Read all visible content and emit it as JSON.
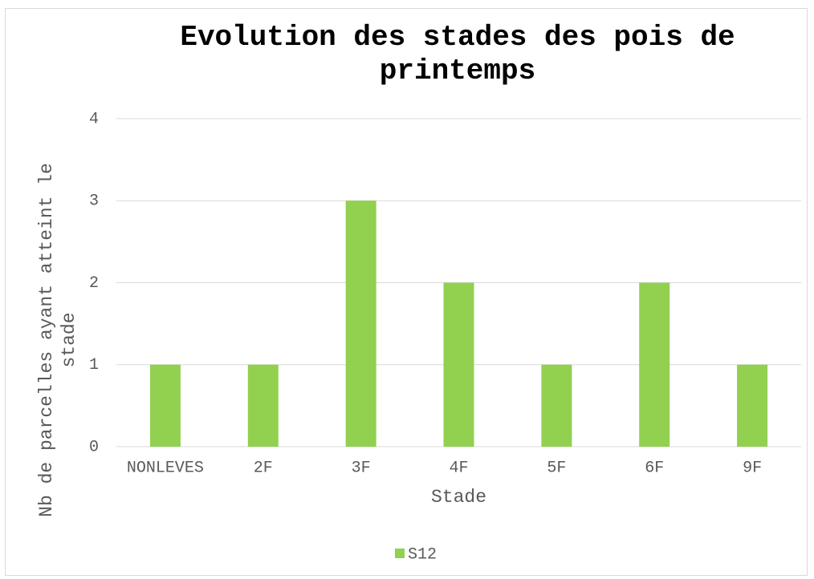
{
  "chart_data": {
    "type": "bar",
    "title": "Evolution des stades des pois de printemps",
    "x_label": "Stade",
    "y_label": "Nb de parcelles ayant atteint le stade",
    "categories": [
      "NONLEVES",
      "2F",
      "3F",
      "4F",
      "5F",
      "6F",
      "9F"
    ],
    "series": [
      {
        "name": "S12",
        "color": "#92d050",
        "values": [
          1,
          1,
          3,
          2,
          1,
          2,
          1
        ]
      }
    ],
    "ylim": [
      0,
      4
    ],
    "yticks": [
      0,
      1,
      2,
      3,
      4
    ],
    "grid": true,
    "legend": "bottom"
  }
}
